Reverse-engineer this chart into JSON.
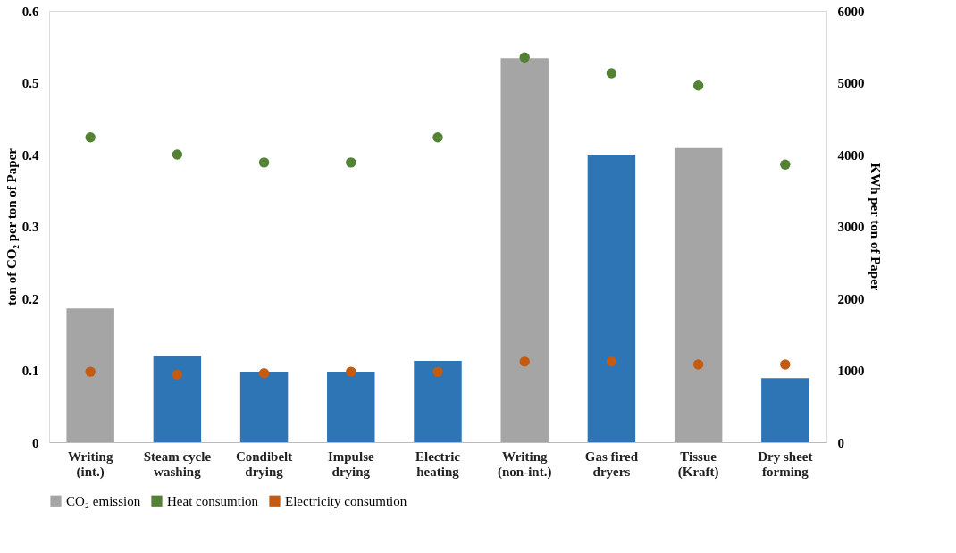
{
  "chart_data": {
    "type": "bar",
    "categories": [
      "Writing\n(int.)",
      "Steam cycle\nwashing",
      "Condibelt\ndrying",
      "Impulse\ndrying",
      "Electric\nheating",
      "Writing\n(non-int.)",
      "Gas fired\ndryers",
      "Tissue\n(Kraft)",
      "Dry sheet\nforming"
    ],
    "ylabel": "ton of CO₂ per ton of Paper",
    "y2label": "KWh per ton of Paper",
    "ylim": [
      0,
      0.6
    ],
    "yticks": [
      0,
      0.1,
      0.2,
      0.3,
      0.4,
      0.5,
      0.6
    ],
    "y2lim": [
      0,
      6000
    ],
    "y2ticks": [
      0,
      1000,
      2000,
      3000,
      4000,
      5000,
      6000
    ],
    "grid": false,
    "legend": "bottom",
    "series": [
      {
        "name": "CO₂ emission",
        "color": "#a5a5a5",
        "colors": [
          "#a5a5a5",
          "#2e75b6",
          "#2e75b6",
          "#2e75b6",
          "#2e75b6",
          "#a5a5a5",
          "#2e75b6",
          "#a5a5a5",
          "#2e75b6"
        ],
        "values": [
          0.186,
          0.12,
          0.098,
          0.098,
          0.113,
          0.534,
          0.4,
          0.409,
          0.089
        ]
      },
      {
        "name": "Heat consumtion",
        "type": "scatter",
        "axis": "y2",
        "marker": "circle",
        "color": "#548235",
        "values": [
          4240,
          4000,
          3890,
          3890,
          4240,
          5350,
          5130,
          4960,
          3860
        ]
      },
      {
        "name": "Electricity  consumtion",
        "type": "scatter",
        "axis": "y2",
        "marker": "circle",
        "color": "#c55a11",
        "values": [
          980,
          940,
          960,
          980,
          980,
          1120,
          1120,
          1080,
          1080
        ]
      }
    ]
  }
}
